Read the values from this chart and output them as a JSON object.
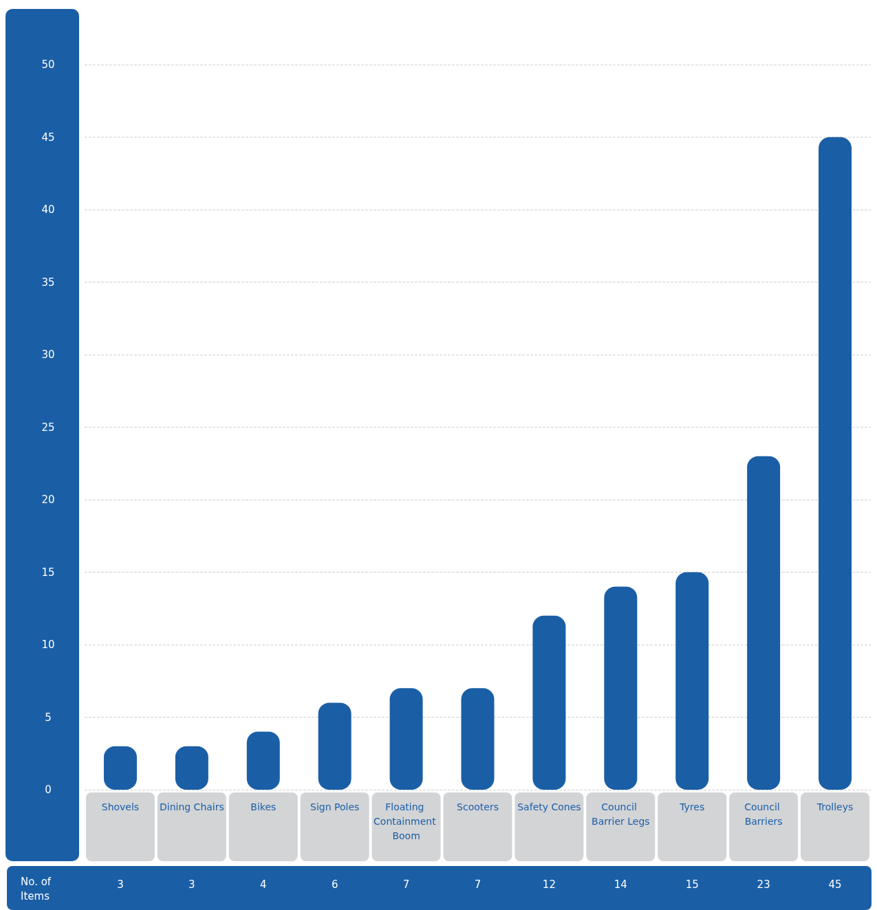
{
  "chart_data": {
    "type": "bar",
    "categories": [
      "Shovels",
      "Dining Chairs",
      "Bikes",
      "Sign Poles",
      "Floating Containment Boom",
      "Scooters",
      "Safety Cones",
      "Council Barrier Legs",
      "Tyres",
      "Council Barriers",
      "Trolleys"
    ],
    "values": [
      3,
      3,
      4,
      6,
      7,
      7,
      12,
      14,
      15,
      23,
      45
    ],
    "color": "#1a5ea6",
    "ylim": [
      0,
      50
    ],
    "yticks": [
      0,
      5,
      10,
      15,
      20,
      25,
      30,
      35,
      40,
      45,
      50
    ],
    "grid": "y",
    "data_labels": true,
    "annotations": [
      "No. of Items"
    ]
  }
}
